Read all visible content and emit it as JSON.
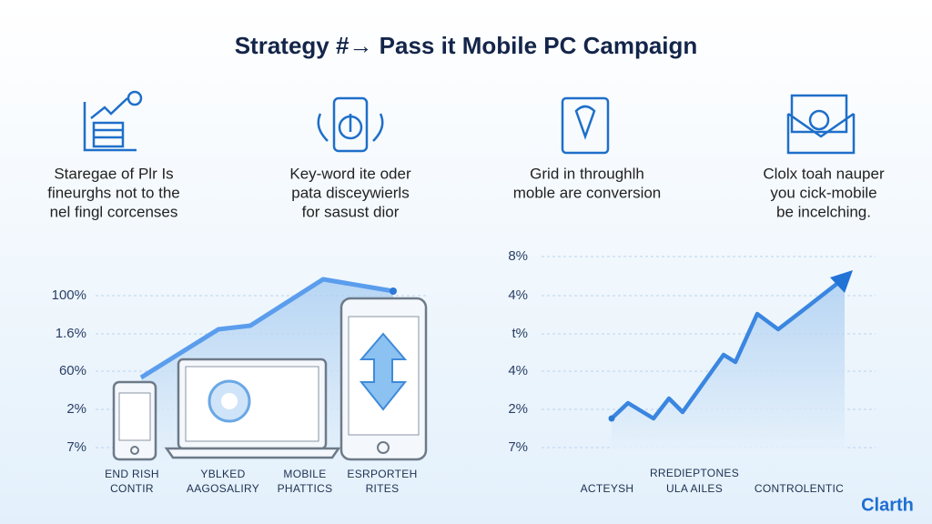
{
  "title": "Strategy #→ Pass it Mobile PC Campaign",
  "features": [
    {
      "lines": [
        "Staregae of Plr Is",
        "fineurghs not to the",
        "nel fingl corcenses"
      ]
    },
    {
      "lines": [
        "Key-word ite oder",
        "pata disceywierls",
        "for sasust dior"
      ]
    },
    {
      "lines": [
        "Grid in throughlh",
        "moble are conversion"
      ]
    },
    {
      "lines": [
        "Clolx toah nauper",
        "you cick-mobile",
        "be incelching."
      ]
    }
  ],
  "left_chart": {
    "y_labels": [
      "100%",
      "1.6%",
      "60%",
      "2%",
      "7%"
    ],
    "x_labels": [
      {
        "lines": [
          "END RISH",
          "CONTIR"
        ]
      },
      {
        "lines": [
          "YBLKED",
          "AAGOSALIRY"
        ]
      },
      {
        "lines": [
          "MOBILE",
          "PHATTICS"
        ]
      },
      {
        "lines": [
          "ESRPORTEH",
          "RITES"
        ]
      }
    ]
  },
  "right_chart": {
    "y_labels": [
      "8%",
      "4%",
      "t%",
      "4%",
      "2%",
      "7%"
    ],
    "x_labels": [
      {
        "lines": [
          "ACTEYSH"
        ]
      },
      {
        "lines": [
          "RREDIEPTONES",
          "ULA AILES"
        ]
      },
      {
        "lines": [
          "CONTROLENTIC"
        ]
      }
    ]
  },
  "brand": "Clarth"
}
